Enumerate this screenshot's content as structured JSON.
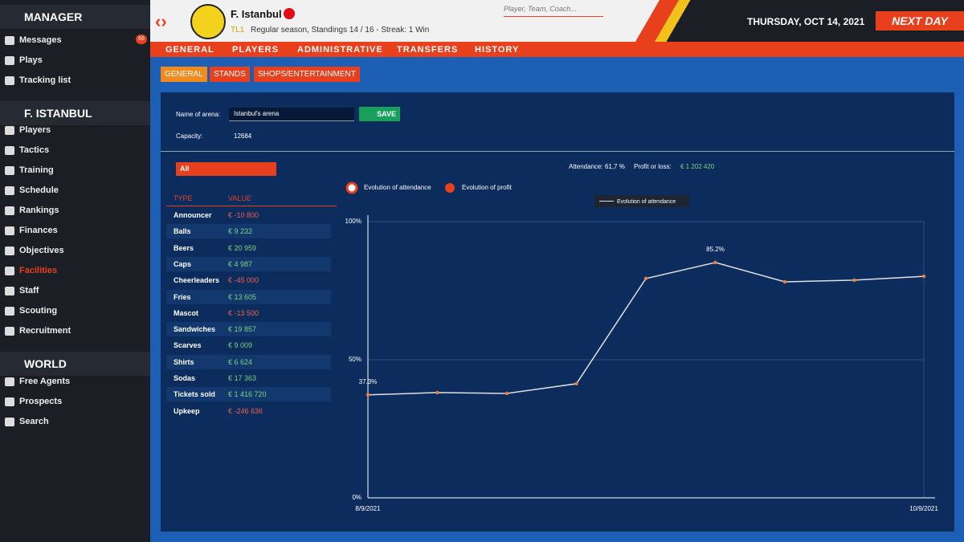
{
  "sidebar": {
    "manager": {
      "title": "MANAGER",
      "items": [
        {
          "label": "Messages",
          "badge": "66"
        },
        {
          "label": "Plays"
        },
        {
          "label": "Tracking list"
        }
      ]
    },
    "club": {
      "title": "F. ISTANBUL",
      "items": [
        {
          "label": "Players"
        },
        {
          "label": "Tactics"
        },
        {
          "label": "Training"
        },
        {
          "label": "Schedule"
        },
        {
          "label": "Rankings"
        },
        {
          "label": "Finances"
        },
        {
          "label": "Objectives"
        },
        {
          "label": "Facilities"
        },
        {
          "label": "Staff"
        },
        {
          "label": "Scouting"
        },
        {
          "label": "Recruitment"
        }
      ]
    },
    "world": {
      "title": "WORLD",
      "items": [
        {
          "label": "Free Agents"
        },
        {
          "label": "Prospects"
        },
        {
          "label": "Search"
        }
      ]
    }
  },
  "header": {
    "club": "F. Istanbul",
    "league": "TL1",
    "info": "Regular season, Standings 14 / 16 - Streak: 1 Win",
    "search": "Player, Team, Coach...",
    "date": "THURSDAY, OCT 14, 2021",
    "next": "NEXT DAY"
  },
  "nav": [
    "GENERAL",
    "PLAYERS",
    "ADMINISTRATIVE",
    "TRANSFERS",
    "HISTORY"
  ],
  "tabs": [
    "GENERAL",
    "STANDS",
    "SHOPS/ENTERTAINMENT"
  ],
  "arena": {
    "name_label": "Name of arena:",
    "name": "Istanbul's arena",
    "save": "SAVE",
    "capacity_label": "Capacity:",
    "capacity": "12684"
  },
  "filter": "All",
  "summary": {
    "attendance": "Attendance: 61,7 %",
    "profit_label": "Profit or loss:",
    "profit": "€ 1 202 420"
  },
  "table": {
    "headers": [
      "TYPE",
      "VALUE"
    ],
    "rows": [
      [
        "Announcer",
        "€ -10 800"
      ],
      [
        "Balls",
        "€ 9 232"
      ],
      [
        "Beers",
        "€ 20 959"
      ],
      [
        "Caps",
        "€ 4 987"
      ],
      [
        "Cheerleaders",
        "€ -45 000"
      ],
      [
        "Fries",
        "€ 13 605"
      ],
      [
        "Mascot",
        "€ -13 500"
      ],
      [
        "Sandwiches",
        "€ 19 857"
      ],
      [
        "Scarves",
        "€ 9 009"
      ],
      [
        "Shirts",
        "€ 6 624"
      ],
      [
        "Sodas",
        "€ 17 363"
      ],
      [
        "Tickets sold",
        "€ 1 416 720"
      ],
      [
        "Upkeep",
        "€ -246 636"
      ]
    ]
  },
  "chart_data": {
    "type": "line",
    "legend": [
      "Evolution of attendance",
      "Evolution of profit"
    ],
    "categories": [
      "8/9/2021",
      null,
      null,
      null,
      null,
      null,
      null,
      null,
      "10/9/2021"
    ],
    "series": [
      {
        "name": "Evolution of attendance",
        "color": "#e0e0e0",
        "values": [
          37.3,
          38.1,
          37.8,
          41.3,
          79.4,
          85.2,
          78.2,
          78.8,
          80.2
        ],
        "value_labels": [
          "37.3%",
          null,
          null,
          null,
          null,
          "85.2%",
          null,
          null,
          null
        ]
      }
    ],
    "ylim": [
      0,
      100
    ],
    "yticks": [
      {
        "value": 0,
        "label": "0%"
      },
      {
        "value": 50,
        "label": "50%"
      },
      {
        "value": 100,
        "label": "100%"
      }
    ],
    "grid": true
  }
}
